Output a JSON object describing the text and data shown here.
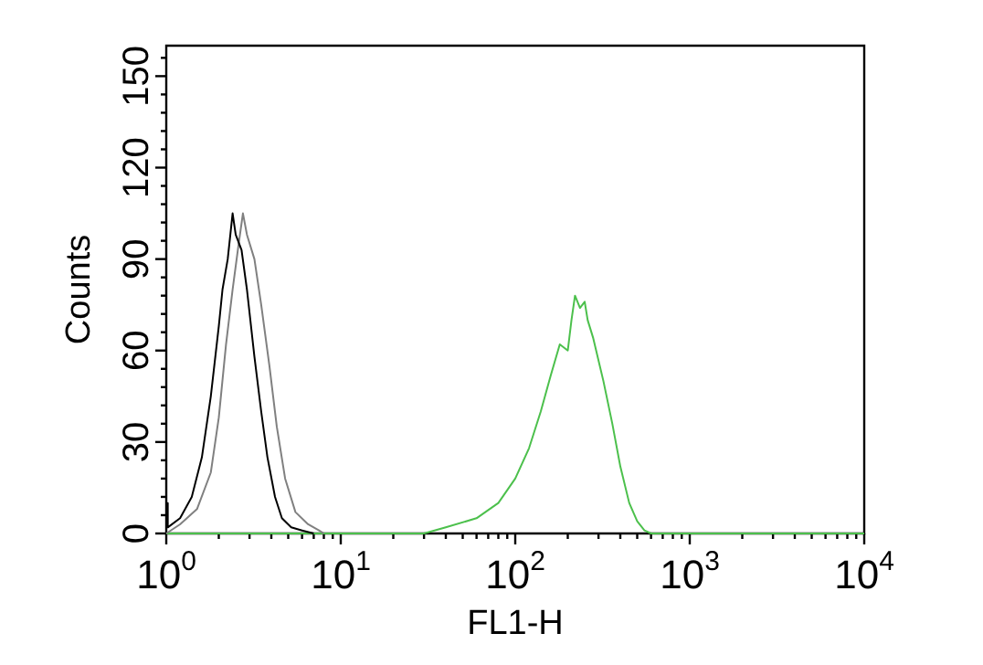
{
  "chart_data": {
    "type": "line",
    "xlabel": "FL1-H",
    "ylabel": "Counts",
    "log": "x",
    "xlim": [
      1,
      10000
    ],
    "ylim": [
      0,
      160
    ],
    "xticks": [
      {
        "value": 1,
        "label": "10$^{0}$"
      },
      {
        "value": 2,
        "label": null
      },
      {
        "value": 3,
        "label": null
      },
      {
        "value": 4,
        "label": null
      },
      {
        "value": 5,
        "label": null
      },
      {
        "value": 6,
        "label": null
      },
      {
        "value": 7,
        "label": null
      },
      {
        "value": 8,
        "label": null
      },
      {
        "value": 9,
        "label": null
      },
      {
        "value": 10,
        "label": "10$^{1}$"
      },
      {
        "value": 20,
        "label": null
      },
      {
        "value": 30,
        "label": null
      },
      {
        "value": 40,
        "label": null
      },
      {
        "value": 50,
        "label": null
      },
      {
        "value": 60,
        "label": null
      },
      {
        "value": 70,
        "label": null
      },
      {
        "value": 80,
        "label": null
      },
      {
        "value": 90,
        "label": null
      },
      {
        "value": 100,
        "label": "10$^{2}$"
      },
      {
        "value": 200,
        "label": null
      },
      {
        "value": 300,
        "label": null
      },
      {
        "value": 400,
        "label": null
      },
      {
        "value": 500,
        "label": null
      },
      {
        "value": 600,
        "label": null
      },
      {
        "value": 700,
        "label": null
      },
      {
        "value": 800,
        "label": null
      },
      {
        "value": 900,
        "label": null
      },
      {
        "value": 1000,
        "label": "10$^{3}$"
      },
      {
        "value": 2000,
        "label": null
      },
      {
        "value": 3000,
        "label": null
      },
      {
        "value": 4000,
        "label": null
      },
      {
        "value": 5000,
        "label": null
      },
      {
        "value": 6000,
        "label": null
      },
      {
        "value": 7000,
        "label": null
      },
      {
        "value": 8000,
        "label": null
      },
      {
        "value": 9000,
        "label": null
      },
      {
        "value": 10000,
        "label": "10$^{4}$"
      }
    ],
    "yticks": [
      0,
      {
        "value": 6,
        "label": null
      },
      {
        "value": 12,
        "label": null
      },
      {
        "value": 18,
        "label": null
      },
      {
        "value": 24,
        "label": null
      },
      30,
      {
        "value": 36,
        "label": null
      },
      {
        "value": 42,
        "label": null
      },
      {
        "value": 48,
        "label": null
      },
      {
        "value": 54,
        "label": null
      },
      60,
      {
        "value": 66,
        "label": null
      },
      {
        "value": 72,
        "label": null
      },
      {
        "value": 78,
        "label": null
      },
      {
        "value": 84,
        "label": null
      },
      90,
      {
        "value": 96,
        "label": null
      },
      {
        "value": 102,
        "label": null
      },
      {
        "value": 108,
        "label": null
      },
      {
        "value": 114,
        "label": null
      },
      120,
      {
        "value": 126,
        "label": null
      },
      {
        "value": 132,
        "label": null
      },
      {
        "value": 138,
        "label": null
      },
      {
        "value": 144,
        "label": null
      },
      150,
      {
        "value": 156,
        "label": null
      }
    ],
    "series": [
      {
        "color": "#000000",
        "x": [
          1,
          1.02,
          1.2,
          1.4,
          1.6,
          1.8,
          2,
          2.1,
          2.25,
          2.4,
          2.5,
          2.7,
          2.9,
          3.2,
          3.5,
          3.8,
          4.2,
          4.6,
          5.2,
          6,
          7
        ],
        "values": [
          10,
          2,
          5,
          12,
          25,
          45,
          68,
          80,
          90,
          105,
          98,
          93,
          80,
          58,
          40,
          25,
          12,
          5,
          2,
          1,
          0
        ]
      },
      {
        "color": "#808080",
        "x": [
          1,
          1.2,
          1.5,
          1.8,
          2,
          2.2,
          2.4,
          2.6,
          2.75,
          2.9,
          3.2,
          3.5,
          3.9,
          4.3,
          4.8,
          5.5,
          6.5,
          7.5,
          8
        ],
        "values": [
          0,
          3,
          8,
          20,
          38,
          62,
          80,
          95,
          105,
          98,
          90,
          75,
          55,
          35,
          18,
          7,
          3,
          1,
          0
        ]
      },
      {
        "color": "#4cc04c",
        "x": [
          1,
          30,
          40,
          60,
          80,
          100,
          120,
          140,
          160,
          180,
          200,
          210,
          220,
          235,
          250,
          260,
          280,
          320,
          360,
          400,
          450,
          500,
          550,
          600,
          10000
        ],
        "values": [
          0,
          0,
          2,
          5,
          10,
          18,
          28,
          40,
          52,
          62,
          60,
          70,
          78,
          74,
          76,
          70,
          64,
          50,
          36,
          22,
          10,
          4,
          1,
          0,
          0
        ]
      }
    ]
  }
}
